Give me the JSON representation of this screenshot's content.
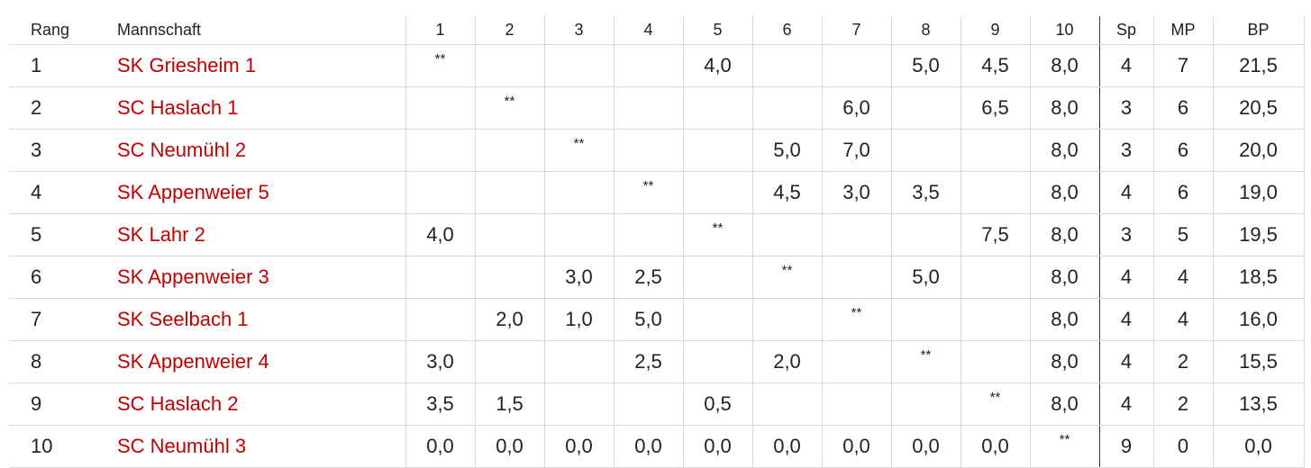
{
  "table": {
    "header": [
      "Rang",
      "Mannschaft",
      "1",
      "2",
      "3",
      "4",
      "5",
      "6",
      "7",
      "8",
      "9",
      "10",
      "Sp",
      "MP",
      "BP"
    ],
    "rows": [
      [
        "1",
        "SK Griesheim 1",
        "**",
        null,
        null,
        null,
        "4,0",
        null,
        null,
        "5,0",
        "4,5",
        "8,0",
        "4",
        "7",
        "21,5"
      ],
      [
        "2",
        "SC Haslach 1",
        null,
        "**",
        null,
        null,
        null,
        null,
        "6,0",
        null,
        "6,5",
        "8,0",
        "3",
        "6",
        "20,5"
      ],
      [
        "3",
        "SC Neumühl 2",
        null,
        null,
        "**",
        null,
        null,
        "5,0",
        "7,0",
        null,
        null,
        "8,0",
        "3",
        "6",
        "20,0"
      ],
      [
        "4",
        "SK Appenweier 5",
        null,
        null,
        null,
        "**",
        null,
        "4,5",
        "3,0",
        "3,5",
        null,
        "8,0",
        "4",
        "6",
        "19,0"
      ],
      [
        "5",
        "SK Lahr 2",
        "4,0",
        null,
        null,
        null,
        "**",
        null,
        null,
        null,
        "7,5",
        "8,0",
        "3",
        "5",
        "19,5"
      ],
      [
        "6",
        "SK Appenweier 3",
        null,
        null,
        "3,0",
        "2,5",
        null,
        "**",
        null,
        "5,0",
        null,
        "8,0",
        "4",
        "4",
        "18,5"
      ],
      [
        "7",
        "SK Seelbach 1",
        null,
        "2,0",
        "1,0",
        "5,0",
        null,
        null,
        "**",
        null,
        null,
        "8,0",
        "4",
        "4",
        "16,0"
      ],
      [
        "8",
        "SK Appenweier 4",
        "3,0",
        null,
        null,
        "2,5",
        null,
        "2,0",
        null,
        "**",
        null,
        "8,0",
        "4",
        "2",
        "15,5"
      ],
      [
        "9",
        "SC Haslach 2",
        "3,5",
        "1,5",
        null,
        null,
        "0,5",
        null,
        null,
        null,
        "**",
        "8,0",
        "4",
        "2",
        "13,5"
      ],
      [
        "10",
        "SC Neumühl 3",
        "0,0",
        "0,0",
        "0,0",
        "0,0",
        "0,0",
        "0,0",
        "0,0",
        "0,0",
        "0,0",
        "**",
        "9",
        "0",
        "0,0"
      ]
    ]
  }
}
